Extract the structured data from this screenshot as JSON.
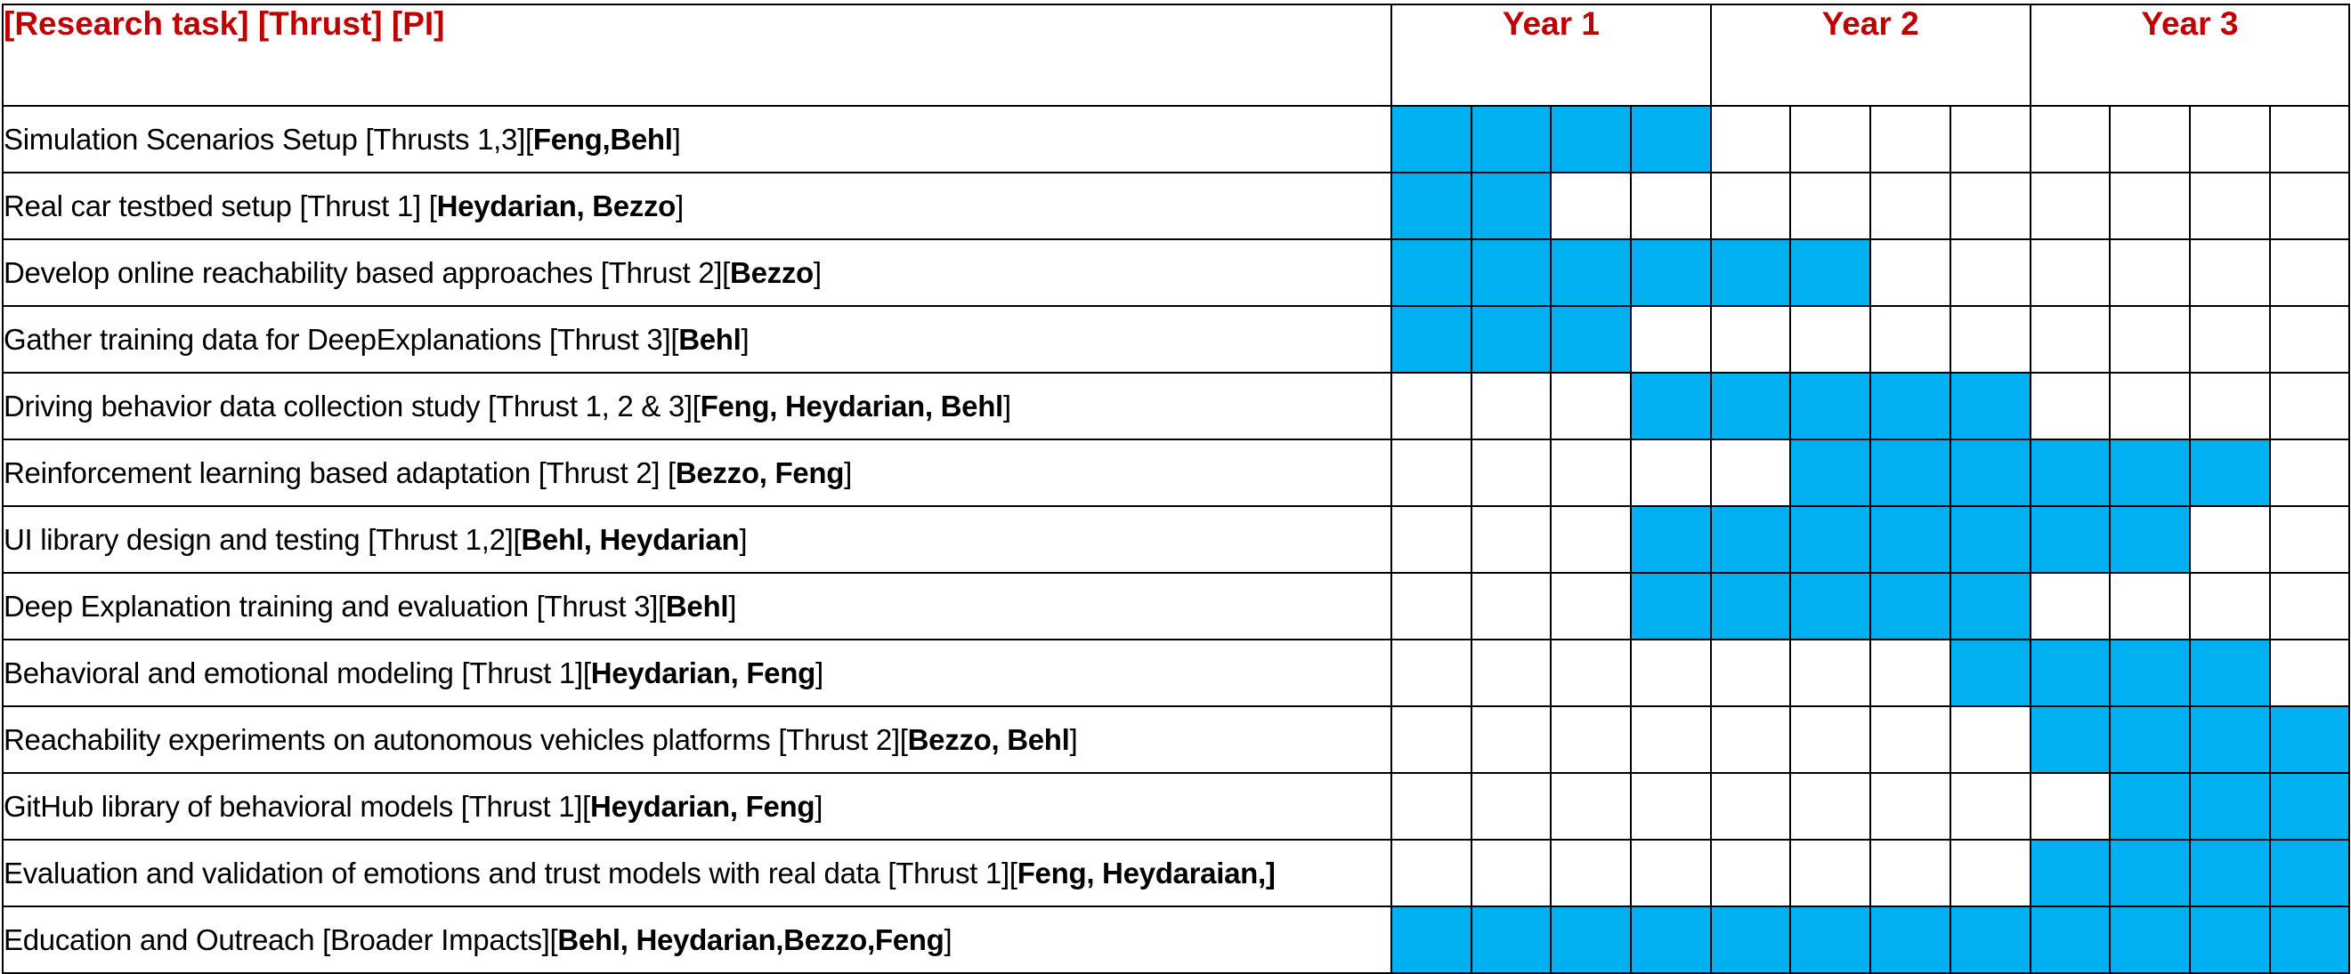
{
  "header": {
    "task_column": "[Research task] [Thrust] [PI]",
    "years": [
      "Year 1",
      "Year 2",
      "Year 3"
    ]
  },
  "colors": {
    "header_text": "#c00000",
    "active_fill": "#00b0f0",
    "grid_lines": "#000000"
  },
  "quarters_per_year": 4,
  "tasks": [
    {
      "title": "Simulation Scenarios Setup [Thrusts 1,3][",
      "pi": "Feng,Behl",
      "suffix": "]",
      "active": [
        1,
        2,
        3,
        4
      ]
    },
    {
      "title": "Real car testbed setup [Thrust 1] [",
      "pi": "Heydarian, Bezzo",
      "suffix": "]",
      "active": [
        1,
        2
      ]
    },
    {
      "title": "Develop online reachability based approaches  [Thrust 2][",
      "pi": "Bezzo",
      "suffix": "]",
      "active": [
        1,
        2,
        3,
        4,
        5,
        6
      ]
    },
    {
      "title": "Gather training data for DeepExplanations [Thrust 3][",
      "pi": "Behl",
      "suffix": "]",
      "active": [
        1,
        2,
        3
      ]
    },
    {
      "title": "Driving behavior data collection study [Thrust 1, 2 & 3][",
      "pi": "Feng, Heydarian, Behl",
      "suffix": "]",
      "active": [
        4,
        5,
        6,
        7,
        8
      ]
    },
    {
      "title": "Reinforcement learning based adaptation [Thrust 2] [",
      "pi": "Bezzo, Feng",
      "suffix": "]",
      "active": [
        6,
        7,
        8,
        9,
        10,
        11
      ]
    },
    {
      "title": "UI library design and testing [Thrust 1,2][",
      "pi": "Behl, Heydarian",
      "suffix": "]",
      "active": [
        4,
        5,
        6,
        7,
        8,
        9,
        10
      ]
    },
    {
      "title": "Deep Explanation training and evaluation [Thrust 3][",
      "pi": "Behl",
      "suffix": "]",
      "active": [
        4,
        5,
        6,
        7,
        8
      ]
    },
    {
      "title": "Behavioral and emotional modeling [Thrust 1][",
      "pi": "Heydarian, Feng",
      "suffix": "]",
      "active": [
        8,
        9,
        10,
        11
      ]
    },
    {
      "title": "Reachability experiments on autonomous vehicles platforms [Thrust 2][",
      "pi": "Bezzo, Behl",
      "suffix": "]",
      "active": [
        9,
        10,
        11,
        12
      ]
    },
    {
      "title": "GitHub library of behavioral models [Thrust 1][",
      "pi": "Heydarian, Feng",
      "suffix": "]",
      "active": [
        10,
        11,
        12
      ]
    },
    {
      "title": "Evaluation and validation of emotions and trust models with real data [Thrust 1][",
      "pi": "Feng, Heydaraian,]",
      "suffix": "",
      "active": [
        9,
        10,
        11,
        12
      ]
    },
    {
      "title": "Education and Outreach [Broader Impacts][",
      "pi": "Behl, Heydarian,Bezzo,Feng",
      "suffix": "]",
      "active": [
        1,
        2,
        3,
        4,
        5,
        6,
        7,
        8,
        9,
        10,
        11,
        12
      ]
    }
  ]
}
